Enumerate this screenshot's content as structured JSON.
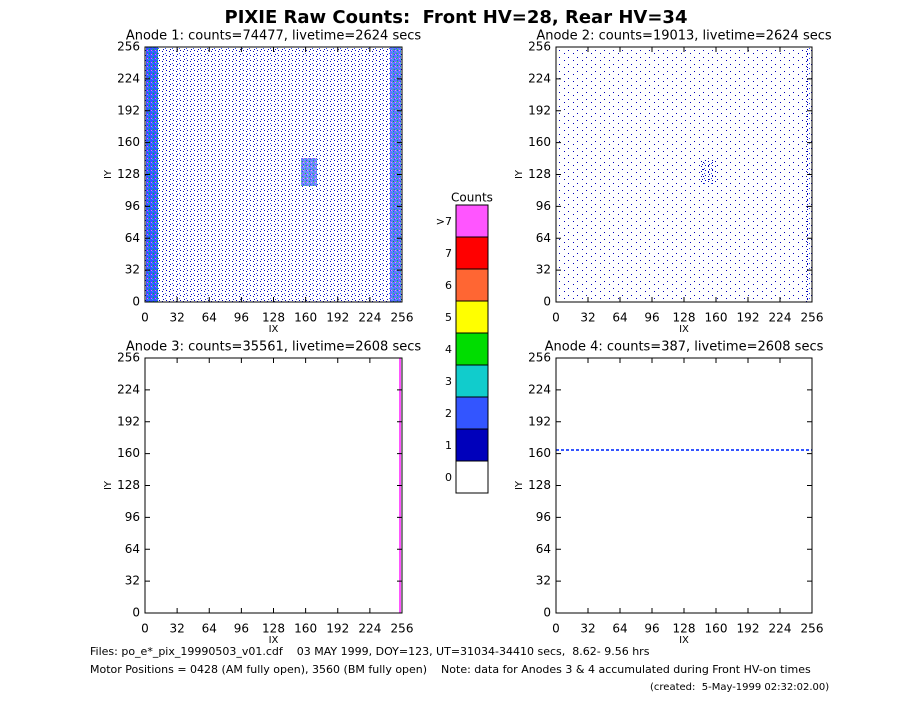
{
  "title": "PIXIE Raw Counts:  Front HV=28, Rear HV=34",
  "chart_data": [
    {
      "type": "heatmap",
      "title": "Anode 1: counts=74477, livetime=2624 secs",
      "xlabel": "IX",
      "ylabel": "IY",
      "xlim": [
        0,
        256
      ],
      "ylim": [
        0,
        256
      ],
      "xticks": [
        0,
        32,
        64,
        96,
        128,
        160,
        192,
        224,
        256
      ],
      "yticks": [
        0,
        32,
        64,
        96,
        128,
        160,
        192,
        224,
        256
      ]
    },
    {
      "type": "heatmap",
      "title": "Anode 2: counts=19013, livetime=2624 secs",
      "xlabel": "IX",
      "ylabel": "IY",
      "xlim": [
        0,
        256
      ],
      "ylim": [
        0,
        256
      ],
      "xticks": [
        0,
        32,
        64,
        96,
        128,
        160,
        192,
        224,
        256
      ],
      "yticks": [
        0,
        32,
        64,
        96,
        128,
        160,
        192,
        224,
        256
      ]
    },
    {
      "type": "heatmap",
      "title": "Anode 3: counts=35561, livetime=2608 secs",
      "xlabel": "IX",
      "ylabel": "IY",
      "xlim": [
        0,
        256
      ],
      "ylim": [
        0,
        256
      ],
      "xticks": [
        0,
        32,
        64,
        96,
        128,
        160,
        192,
        224,
        256
      ],
      "yticks": [
        0,
        32,
        64,
        96,
        128,
        160,
        192,
        224,
        256
      ]
    },
    {
      "type": "heatmap",
      "title": "Anode 4: counts=387, livetime=2608 secs",
      "xlabel": "IX",
      "ylabel": "IY",
      "xlim": [
        0,
        256
      ],
      "ylim": [
        0,
        256
      ],
      "xticks": [
        0,
        32,
        64,
        96,
        128,
        160,
        192,
        224,
        256
      ],
      "yticks": [
        0,
        32,
        64,
        96,
        128,
        160,
        192,
        224,
        256
      ]
    }
  ],
  "colorbar": {
    "title": "Counts",
    "levels": [
      {
        "label": ">7",
        "color": "#ff55ff"
      },
      {
        "label": "7",
        "color": "#ff0000"
      },
      {
        "label": "6",
        "color": "#ff6633"
      },
      {
        "label": "5",
        "color": "#ffff00"
      },
      {
        "label": "4",
        "color": "#00dd00"
      },
      {
        "label": "3",
        "color": "#11cccc"
      },
      {
        "label": "2",
        "color": "#3355ff"
      },
      {
        "label": "1",
        "color": "#0000bb"
      },
      {
        "label": "0",
        "color": "#ffffff"
      }
    ]
  },
  "footer": [
    "Files: po_e*_pix_19990503_v01.cdf    03 MAY 1999, DOY=123, UT=31034-34410 secs,  8.62- 9.56 hrs",
    "Motor Positions = 0428 (AM fully open), 3560 (BM fully open)    Note: data for Anodes 3 & 4 accumulated during Front HV-on times",
    "(created:  5-May-1999 02:32:02.00)"
  ]
}
